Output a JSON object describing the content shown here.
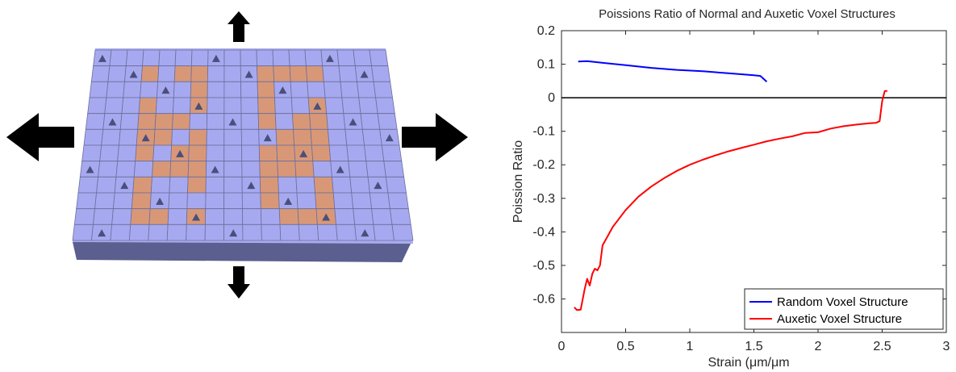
{
  "figure": {
    "description_icons": [
      "arrow-up-icon",
      "arrow-down-icon",
      "arrow-left-icon",
      "arrow-right-icon"
    ],
    "colors": {
      "voxel_blue": "#a7a9f0",
      "voxel_orange": "#d89878",
      "voxel_dark": "#4a4f7a",
      "arrow": "#000000"
    }
  },
  "chart_data": {
    "type": "line",
    "title": "Poissions Ratio of Normal and Auxetic Voxel Structures",
    "xlabel": "Strain (μm/μm",
    "ylabel": "Poission Ratio",
    "xlim": [
      0,
      3
    ],
    "ylim": [
      -0.7,
      0.2
    ],
    "xticks": [
      0,
      0.5,
      1,
      1.5,
      2,
      2.5,
      3
    ],
    "xtick_labels": [
      "0",
      "0.5",
      "1",
      "1.5",
      "2",
      "2.5",
      "3"
    ],
    "yticks": [
      0.2,
      0.1,
      0,
      -0.1,
      -0.2,
      -0.3,
      -0.4,
      -0.5,
      -0.6
    ],
    "ytick_labels": [
      "0.2",
      "0.1",
      "0",
      "-0.1",
      "-0.2",
      "-0.3",
      "-0.4",
      "-0.5",
      "-0.6"
    ],
    "zero_line": true,
    "grid": false,
    "legend_position": "bottom-right",
    "series": [
      {
        "name": "Random Voxel Structure",
        "color": "#0000ff",
        "x": [
          0.13,
          0.2,
          0.3,
          0.5,
          0.7,
          0.9,
          1.1,
          1.3,
          1.5,
          1.55,
          1.6
        ],
        "y": [
          0.108,
          0.109,
          0.105,
          0.097,
          0.089,
          0.083,
          0.079,
          0.073,
          0.067,
          0.065,
          0.048
        ]
      },
      {
        "name": "Auxetic Voxel Structure",
        "color": "#ff0000",
        "x": [
          0.1,
          0.12,
          0.15,
          0.18,
          0.2,
          0.22,
          0.24,
          0.26,
          0.28,
          0.3,
          0.32,
          0.35,
          0.4,
          0.5,
          0.6,
          0.7,
          0.8,
          0.9,
          1.0,
          1.1,
          1.2,
          1.3,
          1.4,
          1.5,
          1.6,
          1.7,
          1.8,
          1.9,
          2.0,
          2.1,
          2.2,
          2.3,
          2.4,
          2.45,
          2.48,
          2.5,
          2.52,
          2.54
        ],
        "y": [
          -0.625,
          -0.633,
          -0.632,
          -0.572,
          -0.54,
          -0.56,
          -0.525,
          -0.51,
          -0.515,
          -0.5,
          -0.44,
          -0.42,
          -0.385,
          -0.335,
          -0.295,
          -0.265,
          -0.24,
          -0.218,
          -0.2,
          -0.185,
          -0.172,
          -0.16,
          -0.15,
          -0.14,
          -0.13,
          -0.122,
          -0.115,
          -0.105,
          -0.103,
          -0.092,
          -0.085,
          -0.08,
          -0.076,
          -0.075,
          -0.07,
          -0.01,
          0.02,
          0.02
        ]
      }
    ]
  }
}
